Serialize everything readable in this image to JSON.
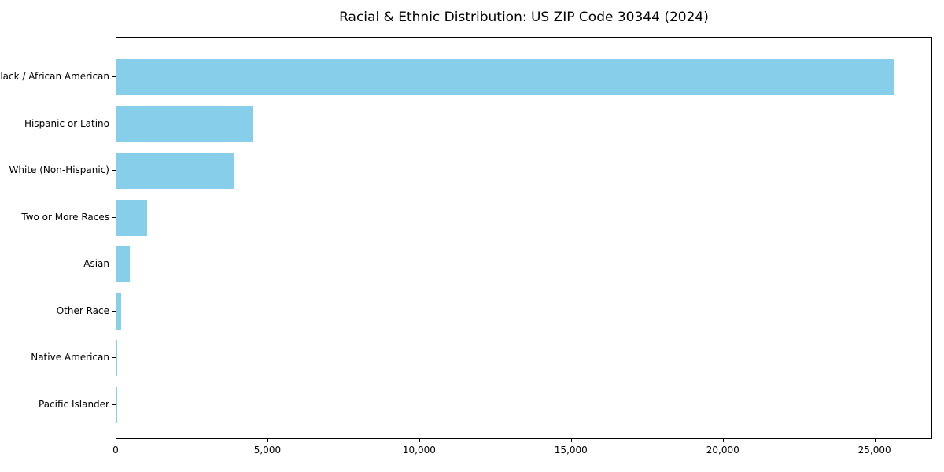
{
  "title": "Racial & Ethnic Distribution: US ZIP Code 30344 (2024)",
  "colors": {
    "bar": "#87CEEB",
    "spine": "#000000",
    "background": "#FFFFFF",
    "text": "#000000"
  },
  "chart_data": {
    "type": "bar",
    "orientation": "horizontal",
    "title": "Racial & Ethnic Distribution: US ZIP Code 30344 (2024)",
    "categories": [
      "Black / African American",
      "Hispanic or Latino",
      "White (Non-Hispanic)",
      "Two or More Races",
      "Asian",
      "Other Race",
      "Native American",
      "Pacific Islander"
    ],
    "values": [
      25610,
      4520,
      3890,
      1000,
      445,
      160,
      20,
      8
    ],
    "bar_color": "#87CEEB",
    "xlabel": "",
    "ylabel": "",
    "xlim": [
      0,
      26900
    ],
    "xticks": [
      0,
      5000,
      10000,
      15000,
      20000,
      25000
    ],
    "xtick_labels": [
      "0",
      "5,000",
      "10,000",
      "15,000",
      "20,000",
      "25,000"
    ],
    "grid": false,
    "legend": null
  }
}
